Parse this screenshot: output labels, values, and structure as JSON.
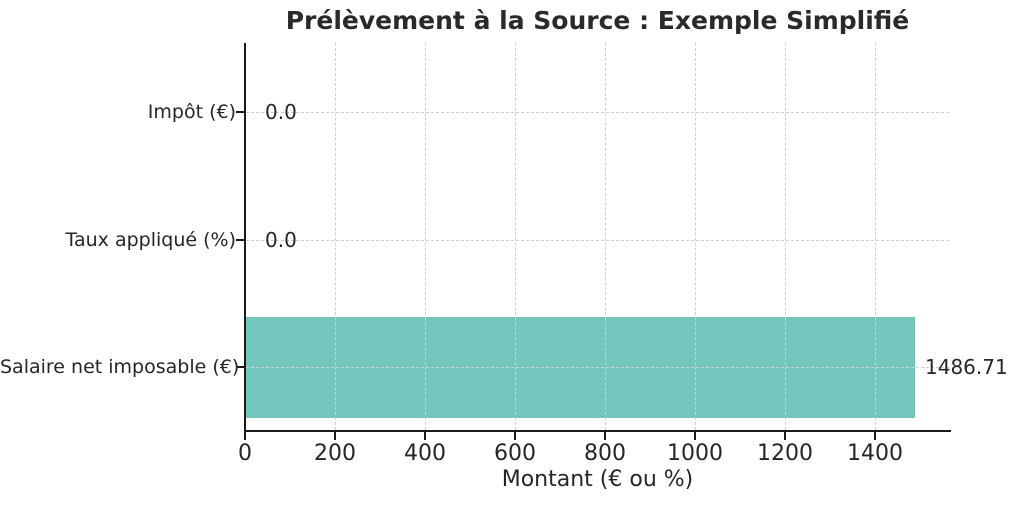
{
  "chart_data": {
    "type": "bar",
    "orientation": "horizontal",
    "title": "Prélèvement à la Source : Exemple Simplifié",
    "xlabel": "Montant (€ ou %)",
    "ylabel": "",
    "categories": [
      "Impôt (€)",
      "Taux appliqué (%)",
      "Salaire net imposable (€)"
    ],
    "values": [
      0.0,
      0.0,
      1486.71
    ],
    "value_labels": [
      "0.0",
      "0.0",
      "1486.71"
    ],
    "xticks": [
      0,
      200,
      400,
      600,
      800,
      1000,
      1200,
      1400
    ],
    "xlim": [
      0,
      1567
    ],
    "grid": "dashed",
    "legend": "none",
    "bar_color": "#74c6bd",
    "grid_color": "#cfcfcf",
    "axis_color": "#1a1a1a",
    "text_color": "#262626"
  }
}
